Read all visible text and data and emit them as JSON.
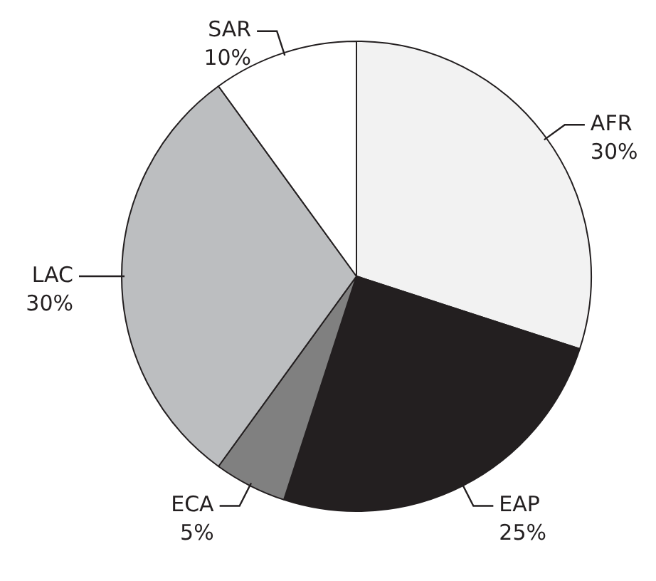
{
  "chart_data": {
    "type": "pie",
    "categories": [
      "AFR",
      "EAP",
      "ECA",
      "LAC",
      "SAR"
    ],
    "values": [
      30,
      25,
      5,
      30,
      10
    ],
    "colors": [
      "#f2f2f2",
      "#231f20",
      "#808080",
      "#bcbec0",
      "#ffffff"
    ],
    "value_labels": [
      "30%",
      "25%",
      "5%",
      "30%",
      "10%"
    ]
  }
}
